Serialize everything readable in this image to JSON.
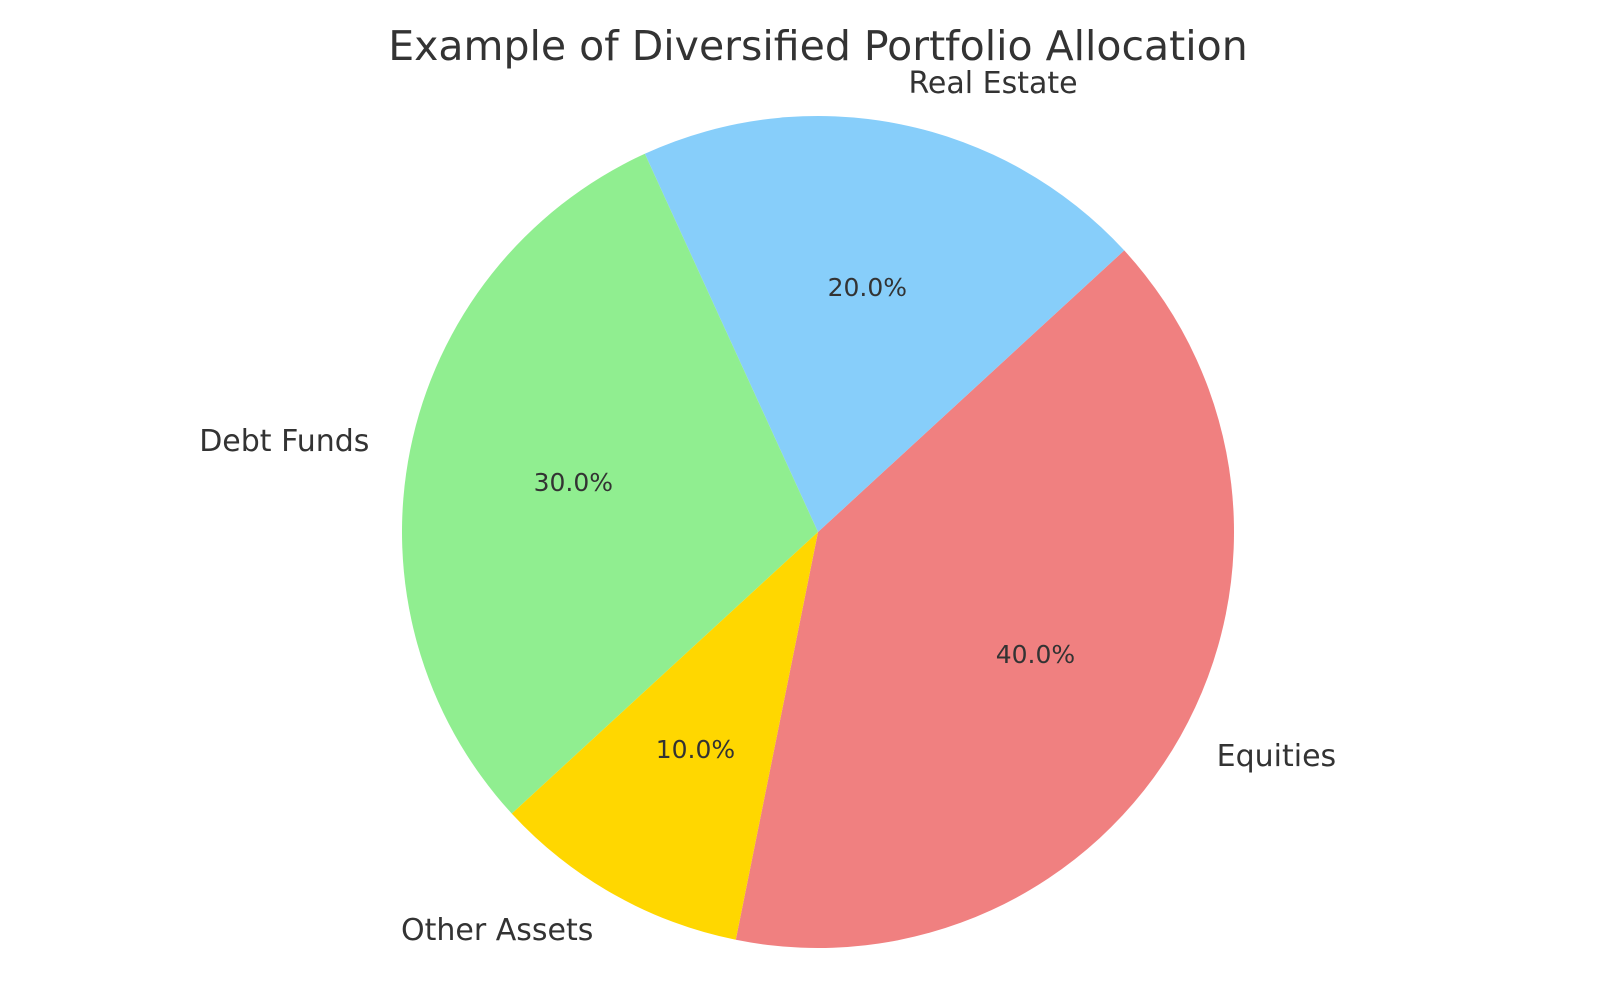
{
  "chart_data": {
    "type": "pie",
    "title": "Example of Diversified Portfolio Allocation",
    "slices": [
      {
        "label": "Equities",
        "value": 40,
        "pct_label": "40.0%",
        "color": "#F08080"
      },
      {
        "label": "Real Estate",
        "value": 20,
        "pct_label": "20.0%",
        "color": "#87CEFA"
      },
      {
        "label": "Debt Funds",
        "value": 30,
        "pct_label": "30.0%",
        "color": "#90EE90"
      },
      {
        "label": "Other Assets",
        "value": 10,
        "pct_label": "10.0%",
        "color": "#FFD700"
      }
    ],
    "legend": "none"
  }
}
